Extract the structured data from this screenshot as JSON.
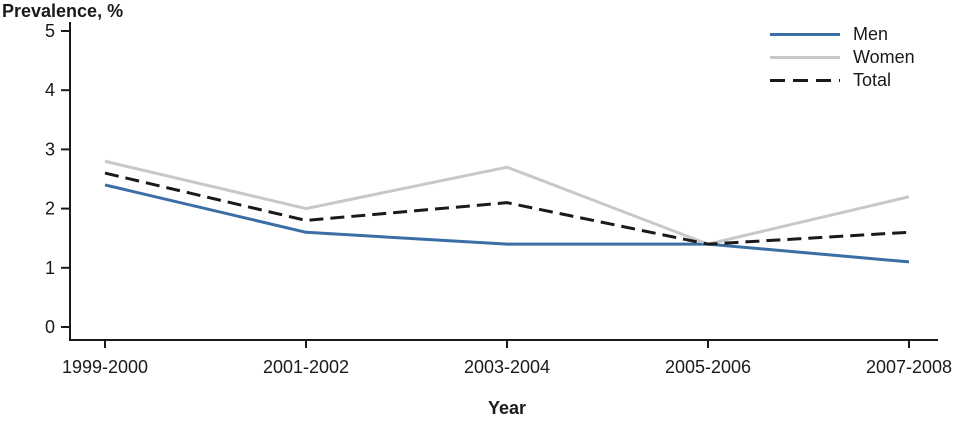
{
  "chart_data": {
    "type": "line",
    "title": "Prevalence, %",
    "xlabel": "Year",
    "ylabel": "Prevalence, %",
    "categories": [
      "1999-2000",
      "2001-2002",
      "2003-2004",
      "2005-2006",
      "2007-2008"
    ],
    "yticks": [
      0,
      1,
      2,
      3,
      4,
      5
    ],
    "ylim": [
      0,
      5
    ],
    "grid": false,
    "legend_position": "top-right",
    "axis_color": "#1a1a1a",
    "series": [
      {
        "name": "Men",
        "color": "#3a6ea5",
        "dash": false,
        "values": [
          2.4,
          1.6,
          1.4,
          1.4,
          1.1
        ]
      },
      {
        "name": "Women",
        "color": "#c8c8c8",
        "dash": false,
        "values": [
          2.8,
          2.0,
          2.7,
          1.4,
          2.2
        ]
      },
      {
        "name": "Total",
        "color": "#1a1a1a",
        "dash": true,
        "values": [
          2.6,
          1.8,
          2.1,
          1.4,
          1.6
        ]
      }
    ]
  }
}
